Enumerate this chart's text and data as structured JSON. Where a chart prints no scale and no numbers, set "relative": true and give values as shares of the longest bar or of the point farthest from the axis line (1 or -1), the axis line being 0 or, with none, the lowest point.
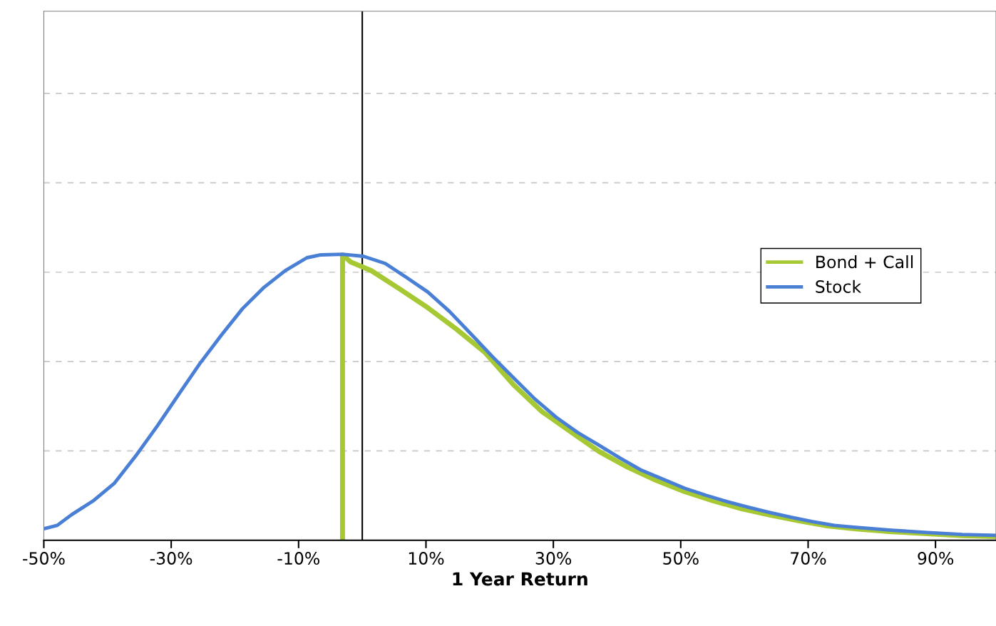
{
  "chart_data": {
    "type": "line",
    "xlabel": "1 Year Return",
    "relative": true,
    "tick_labels": "x",
    "grid": "y",
    "legend": "right",
    "xlim": [
      -50,
      99.5
    ],
    "xticks": [
      {
        "value": -50,
        "label": "-50%"
      },
      {
        "value": -30,
        "label": "-30%"
      },
      {
        "value": -10,
        "label": "-10%"
      },
      {
        "value": 10,
        "label": "10%"
      },
      {
        "value": 30,
        "label": "30%"
      },
      {
        "value": 50,
        "label": "50%"
      },
      {
        "value": 70,
        "label": "70%"
      },
      {
        "value": 90,
        "label": "90%"
      }
    ],
    "ref_lines": [
      {
        "axis": "x",
        "value": 0,
        "color": "#000000"
      }
    ],
    "series": [
      {
        "name": "Bond + Call",
        "color": "#a6c832",
        "x": [
          -3.1,
          -3.1,
          -1.8,
          1.4,
          5.8,
          10.3,
          14.8,
          19.3,
          23.7,
          28.2,
          32.7,
          37.2,
          41.7,
          46.1,
          50.6,
          55.1,
          59.6,
          64.0,
          68.5,
          73.0,
          77.5,
          83.1,
          88.7,
          94.2,
          99.5
        ],
        "values": [
          0,
          0.998,
          0.973,
          0.943,
          0.88,
          0.813,
          0.738,
          0.656,
          0.545,
          0.45,
          0.38,
          0.31,
          0.255,
          0.21,
          0.17,
          0.138,
          0.11,
          0.088,
          0.068,
          0.05,
          0.04,
          0.03,
          0.023,
          0.016,
          0.013
        ]
      },
      {
        "name": "Stock",
        "color": "#4a7fd6",
        "x": [
          -50,
          -47.9,
          -45.6,
          -42.3,
          -38.9,
          -35.6,
          -32.2,
          -28.8,
          -25.5,
          -22.1,
          -18.8,
          -15.4,
          -12.1,
          -8.7,
          -6.5,
          -3.1,
          0.2,
          3.6,
          7.0,
          10.3,
          13.7,
          17.0,
          20.4,
          23.7,
          27.1,
          30.4,
          33.8,
          37.2,
          40.5,
          43.9,
          47.2,
          50.6,
          54.0,
          57.3,
          60.7,
          64.0,
          67.4,
          70.7,
          74.1,
          77.5,
          83.1,
          88.7,
          94.2,
          99.5
        ],
        "values": [
          0.04,
          0.052,
          0.09,
          0.137,
          0.2,
          0.294,
          0.399,
          0.511,
          0.618,
          0.718,
          0.81,
          0.885,
          0.943,
          0.988,
          0.998,
          1.0,
          0.993,
          0.968,
          0.918,
          0.868,
          0.8,
          0.723,
          0.643,
          0.569,
          0.494,
          0.431,
          0.377,
          0.332,
          0.287,
          0.244,
          0.214,
          0.182,
          0.157,
          0.135,
          0.115,
          0.097,
          0.08,
          0.065,
          0.052,
          0.045,
          0.035,
          0.027,
          0.02,
          0.017
        ]
      }
    ]
  }
}
